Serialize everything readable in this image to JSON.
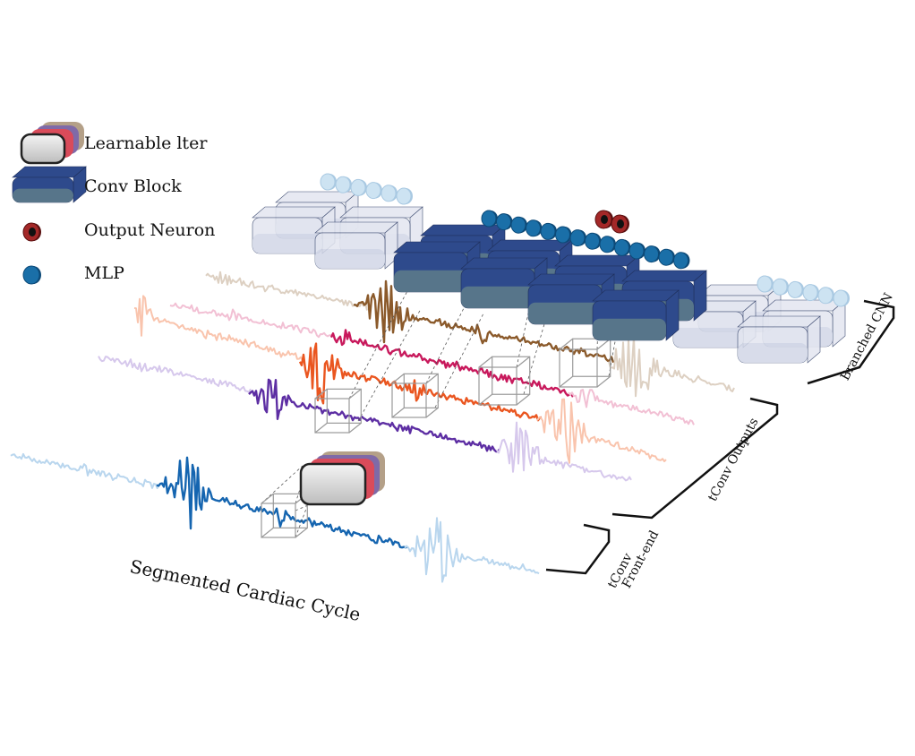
{
  "legend": {
    "items": [
      {
        "label": "Learnable  lter",
        "icon": "learnable-filter-icon"
      },
      {
        "label": "Conv Block",
        "icon": "conv-block-icon"
      },
      {
        "label": "Output Neuron",
        "icon": "output-neuron-icon"
      },
      {
        "label": "MLP",
        "icon": "mlp-icon"
      }
    ]
  },
  "labels": {
    "segmented_cycle": "Segmented Cardiac Cycle",
    "branched_cnn": "Branched CNN",
    "tconv_outputs": "tConv Outputs",
    "tconv_frontend_line1": "tConv",
    "tconv_frontend_line2": "Front-end"
  },
  "colors": {
    "conv_block": "#2e4a8c",
    "conv_block_side": "#5c7a8a",
    "conv_block_faded": "#e3e6f0",
    "mlp": "#1a6fa8",
    "mlp_faded": "#cde3f2",
    "output_neuron": "#a32828",
    "filter_body": "#8a8a8a",
    "filter_accent": "#d94b5a",
    "input_signal": "#1565b0",
    "input_signal_faded": "#b9d6ee",
    "tconv_signals": [
      "#8b5a2b",
      "#c8195c",
      "#ea5620",
      "#5d2ea3"
    ],
    "tconv_signals_faded": [
      "#ddd0c2",
      "#f2c0d4",
      "#f9c4ad",
      "#d6c8ec"
    ]
  }
}
